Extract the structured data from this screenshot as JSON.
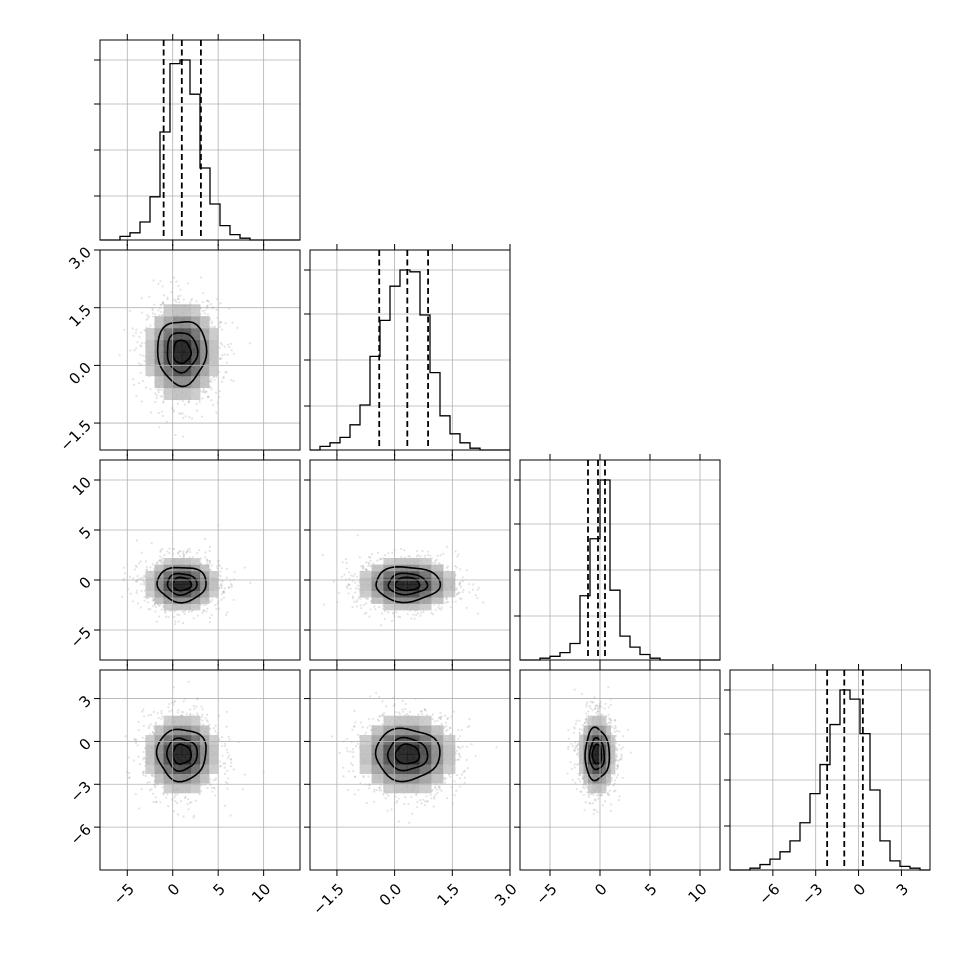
{
  "chart_data": {
    "type": "corner",
    "title": "",
    "grid": true,
    "parameters": [
      {
        "index": 0,
        "range": [
          -8,
          14
        ],
        "ticks": [
          -5,
          0,
          5,
          10
        ],
        "tick_labels": [
          "−5",
          "0",
          "5",
          "10"
        ]
      },
      {
        "index": 1,
        "range": [
          -2.2,
          3.0
        ],
        "ticks": [
          -1.5,
          0.0,
          1.5,
          3.0
        ],
        "tick_labels": [
          "−1.5",
          "0.0",
          "1.5",
          "3.0"
        ]
      },
      {
        "index": 2,
        "range": [
          -8,
          12
        ],
        "ticks": [
          -5,
          0,
          5,
          10
        ],
        "tick_labels": [
          "−5",
          "0",
          "5",
          "10"
        ]
      },
      {
        "index": 3,
        "range": [
          -9,
          5
        ],
        "ticks": [
          -6,
          -3,
          0,
          3
        ],
        "tick_labels": [
          "−6",
          "−3",
          "0",
          "3"
        ]
      }
    ],
    "histograms": [
      {
        "param": 0,
        "bin_edges": [
          -8,
          -6.9,
          -5.8,
          -4.7,
          -3.6,
          -2.5,
          -1.4,
          -0.3,
          0.8,
          1.9,
          3.0,
          4.1,
          5.2,
          6.3,
          7.4,
          8.5,
          9.6,
          10.7,
          11.8,
          12.9,
          14
        ],
        "counts": [
          0,
          0,
          0.02,
          0.04,
          0.1,
          0.24,
          0.6,
          0.98,
          1.0,
          0.81,
          0.4,
          0.2,
          0.08,
          0.03,
          0.01,
          0,
          0,
          0,
          0,
          0
        ],
        "quantiles": [
          -1.0,
          1.0,
          3.1
        ]
      },
      {
        "param": 1,
        "bin_edges": [
          -2.2,
          -1.94,
          -1.68,
          -1.42,
          -1.16,
          -0.9,
          -0.64,
          -0.38,
          -0.12,
          0.14,
          0.4,
          0.66,
          0.92,
          1.18,
          1.44,
          1.7,
          1.96,
          2.22,
          2.48,
          2.74,
          3.0
        ],
        "counts": [
          0,
          0.02,
          0.04,
          0.07,
          0.14,
          0.25,
          0.52,
          0.72,
          0.91,
          1.0,
          0.99,
          0.75,
          0.43,
          0.19,
          0.09,
          0.04,
          0.01,
          0,
          0,
          0
        ],
        "quantiles": [
          -0.4,
          0.33,
          0.87
        ]
      },
      {
        "param": 2,
        "bin_edges": [
          -8,
          -7,
          -6,
          -5,
          -4,
          -3,
          -2,
          -1,
          0,
          1,
          2,
          3,
          4,
          5,
          6,
          7,
          8,
          9,
          10,
          11,
          12
        ],
        "counts": [
          0,
          0,
          0.01,
          0.02,
          0.04,
          0.09,
          0.35,
          0.66,
          0.98,
          0.38,
          0.13,
          0.07,
          0.03,
          0.01,
          0,
          0,
          0,
          0,
          0,
          0
        ],
        "quantiles": [
          -1.2,
          -0.2,
          0.5
        ]
      },
      {
        "param": 3,
        "bin_edges": [
          -9,
          -8.3,
          -7.6,
          -6.9,
          -6.2,
          -5.5,
          -4.8,
          -4.1,
          -3.4,
          -2.7,
          -2.0,
          -1.3,
          -0.6,
          0.1,
          0.8,
          1.5,
          2.2,
          2.9,
          3.6,
          4.3,
          5.0
        ],
        "counts": [
          0,
          0,
          0.01,
          0.03,
          0.06,
          0.1,
          0.16,
          0.26,
          0.42,
          0.58,
          0.8,
          0.99,
          0.94,
          0.75,
          0.44,
          0.16,
          0.05,
          0.02,
          0.01,
          0
        ],
        "quantiles": [
          -2.2,
          -1.0,
          0.3
        ]
      }
    ],
    "scatter_panels": [
      {
        "x_param": 0,
        "y_param": 1,
        "center": [
          1.0,
          0.35
        ],
        "sigma": [
          2.0,
          0.62
        ],
        "levels": [
          0.92,
          0.62,
          0.28
        ]
      },
      {
        "x_param": 0,
        "y_param": 2,
        "center": [
          1.0,
          -0.4
        ],
        "sigma": [
          2.0,
          1.3
        ],
        "levels": [
          0.92,
          0.6,
          0.3
        ]
      },
      {
        "x_param": 1,
        "y_param": 2,
        "center": [
          0.33,
          -0.4
        ],
        "sigma": [
          0.62,
          1.3
        ],
        "levels": [
          0.92,
          0.6,
          0.3
        ]
      },
      {
        "x_param": 0,
        "y_param": 3,
        "center": [
          1.0,
          -0.9
        ],
        "sigma": [
          2.0,
          1.35
        ],
        "levels": [
          0.92,
          0.62,
          0.3
        ]
      },
      {
        "x_param": 1,
        "y_param": 3,
        "center": [
          0.33,
          -0.9
        ],
        "sigma": [
          0.62,
          1.35
        ],
        "levels": [
          0.92,
          0.62,
          0.3
        ]
      },
      {
        "x_param": 2,
        "y_param": 3,
        "center": [
          -0.3,
          -0.9
        ],
        "sigma": [
          0.9,
          1.35
        ],
        "levels": [
          0.92,
          0.6,
          0.3
        ]
      }
    ]
  }
}
